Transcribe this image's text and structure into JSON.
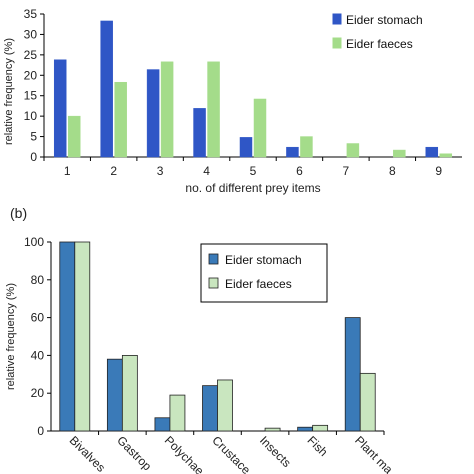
{
  "chart_data": [
    {
      "type": "bar",
      "title": "",
      "xlabel": "no. of different prey items",
      "ylabel": "relative frequency (%)",
      "ylim": [
        0,
        35
      ],
      "yticks": [
        0,
        5,
        10,
        15,
        20,
        25,
        30,
        35
      ],
      "categories": [
        "1",
        "2",
        "3",
        "4",
        "5",
        "6",
        "7",
        "8",
        "9"
      ],
      "series": [
        {
          "name": "Eider stomach",
          "color": "#2f56c6",
          "values": [
            23.8,
            33.3,
            21.4,
            11.9,
            4.8,
            2.4,
            0,
            0,
            2.4
          ]
        },
        {
          "name": "Eider faeces",
          "color": "#a4dc8a",
          "values": [
            10.0,
            18.3,
            23.3,
            23.3,
            14.2,
            5.0,
            3.3,
            1.7,
            0.8
          ]
        }
      ],
      "legend": "top-right",
      "grid": false
    },
    {
      "type": "bar",
      "panel_label": "(b)",
      "title": "",
      "xlabel": "",
      "ylabel": "relative frequency (%)",
      "ylim": [
        0,
        100
      ],
      "yticks": [
        0,
        20,
        40,
        60,
        80,
        100
      ],
      "categories": [
        "Bivalves",
        "Gastropods",
        "Polychaetes",
        "Crustaceans",
        "Insects",
        "Fish",
        "Plant material"
      ],
      "category_labels_visible": [
        "Bivalves",
        "Gastrop",
        "Polychae",
        "Crustace",
        "Insects",
        "Fish",
        "Plant ma"
      ],
      "series": [
        {
          "name": "Eider stomach",
          "color": "#3a7ab8",
          "values": [
            100,
            38,
            7,
            24,
            0,
            2,
            60
          ]
        },
        {
          "name": "Eider faeces",
          "color": "#c9e6bf",
          "values": [
            100,
            40,
            19,
            27,
            1.5,
            3,
            30.5
          ]
        }
      ],
      "legend": "top-center",
      "grid": false
    }
  ]
}
